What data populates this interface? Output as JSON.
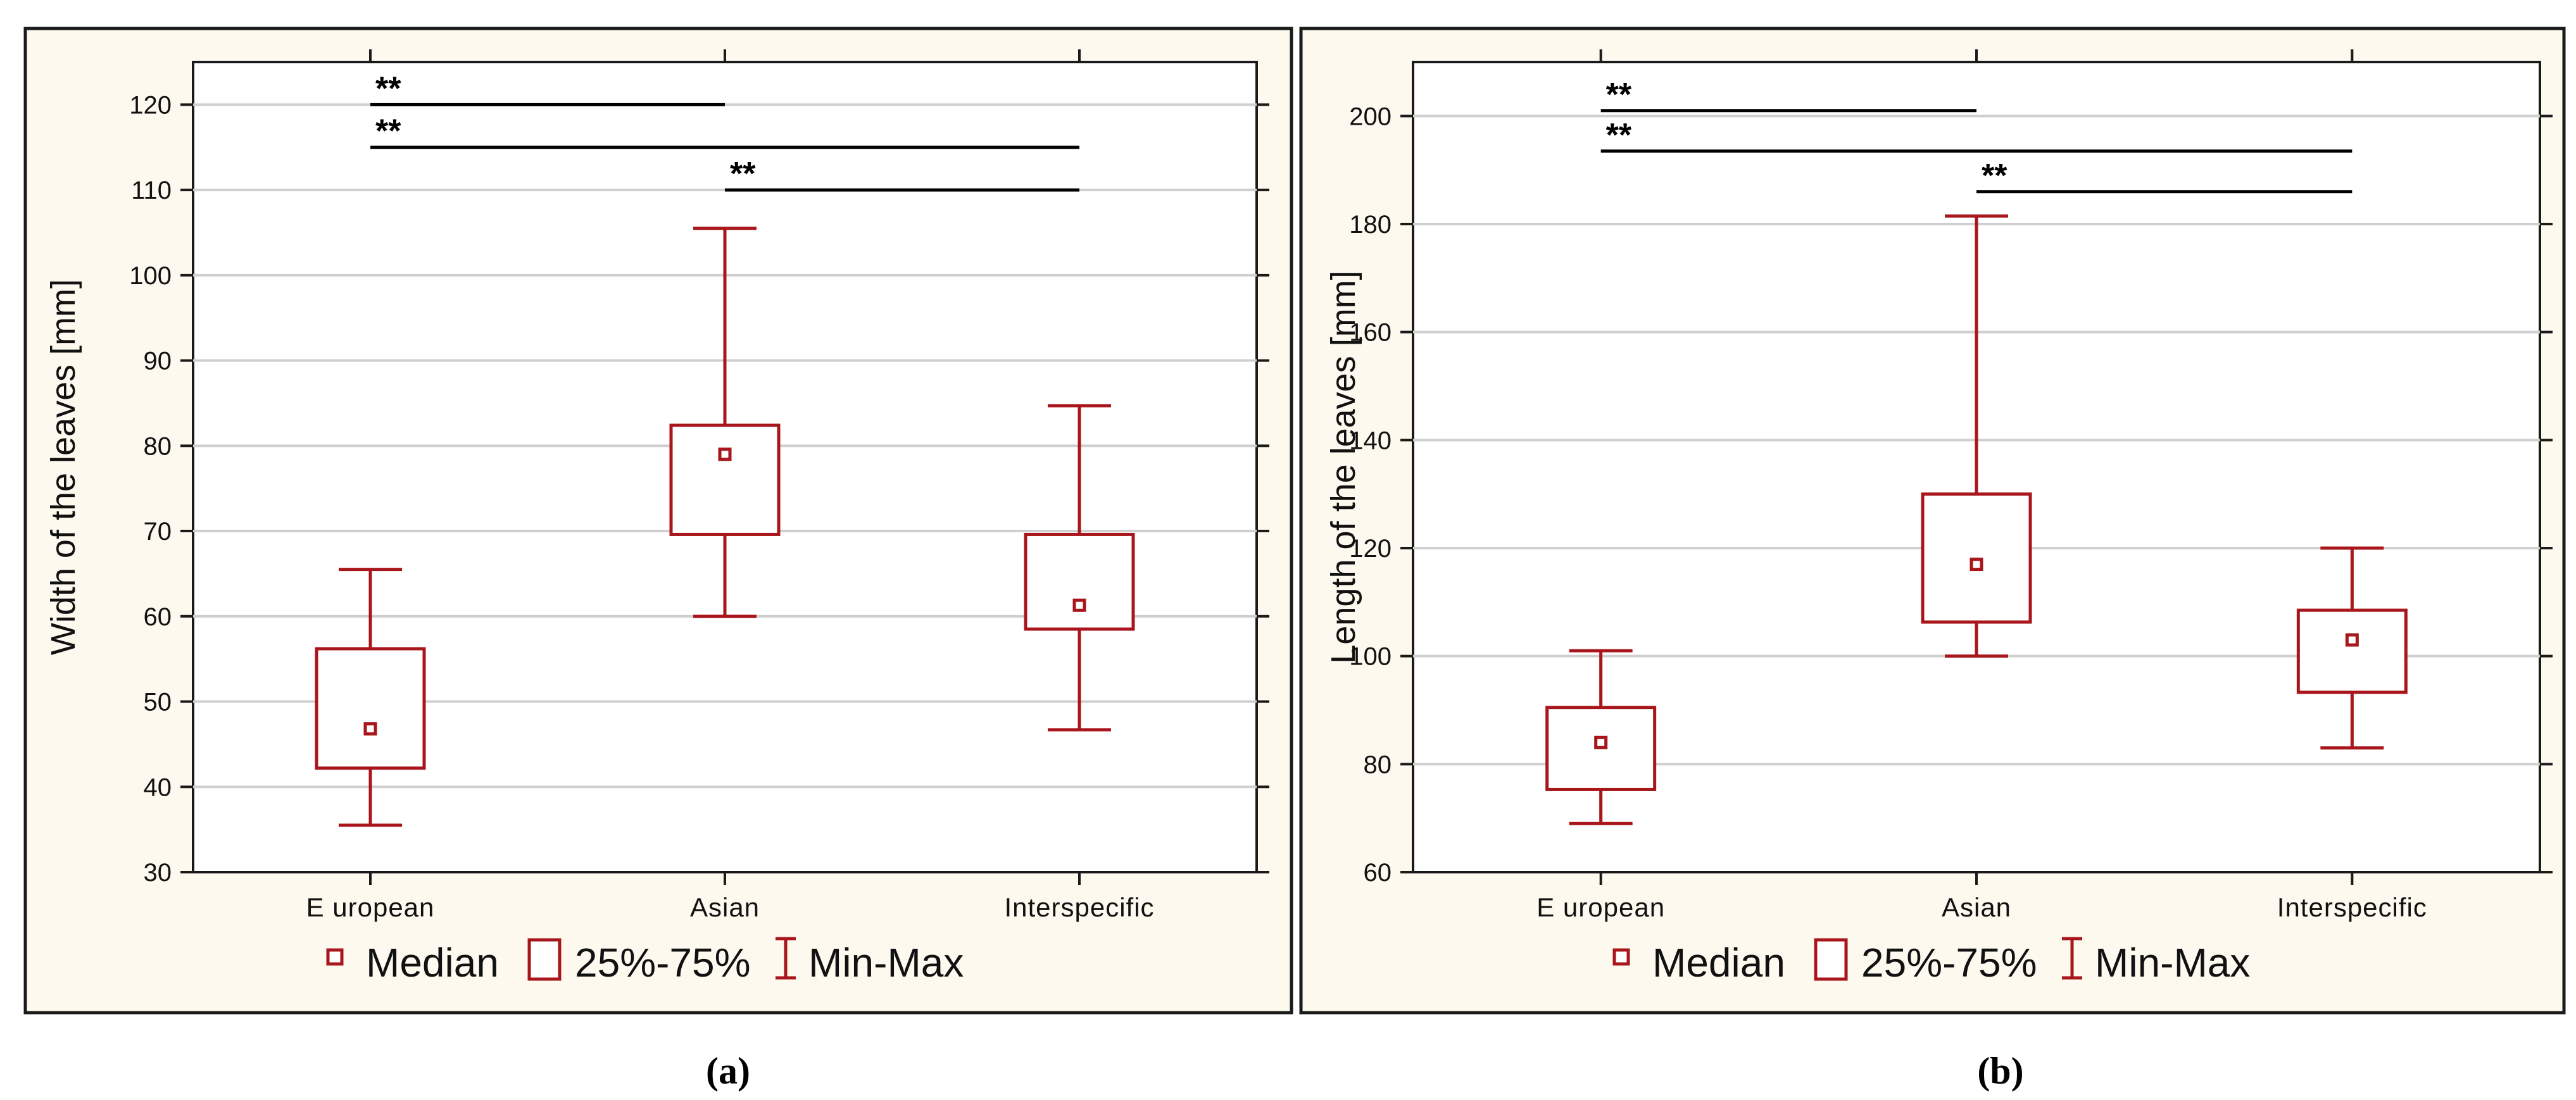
{
  "legend": {
    "median": "Median",
    "box": "25%-75%",
    "whisker": "Min-Max"
  },
  "colors": {
    "series": "#a8161c",
    "panel_background": "#fdf9ef",
    "grid": "#cfcfcf"
  },
  "chart_data": [
    {
      "type": "box",
      "panel_label": "(a)",
      "ylabel": "Width of the leaves [mm]",
      "xlabel": "",
      "ylim": [
        30,
        125
      ],
      "yticks": [
        30,
        40,
        50,
        60,
        70,
        80,
        90,
        100,
        110,
        120
      ],
      "grid": true,
      "categories": [
        "E uropean",
        "Asian",
        "Interspecific"
      ],
      "groups": [
        {
          "name": "E uropean",
          "min": 35.5,
          "q1": 42.2,
          "median": 46.8,
          "q3": 56.2,
          "max": 65.5
        },
        {
          "name": "Asian",
          "min": 60.0,
          "q1": 69.6,
          "median": 79.0,
          "q3": 82.4,
          "max": 105.5
        },
        {
          "name": "Interspecific",
          "min": 46.7,
          "q1": 58.5,
          "median": 61.3,
          "q3": 69.6,
          "max": 84.7
        }
      ],
      "significance": [
        {
          "from": 0,
          "to": 1,
          "y": 120,
          "label": "**"
        },
        {
          "from": 0,
          "to": 2,
          "y": 115,
          "label": "**"
        },
        {
          "from": 1,
          "to": 2,
          "y": 110,
          "label": "**"
        }
      ]
    },
    {
      "type": "box",
      "panel_label": "(b)",
      "ylabel": "Length of the leaves [mm]",
      "xlabel": "",
      "ylim": [
        60,
        210
      ],
      "yticks": [
        60,
        80,
        100,
        120,
        140,
        160,
        180,
        200
      ],
      "grid": true,
      "categories": [
        "E uropean",
        "Asian",
        "Interspecific"
      ],
      "groups": [
        {
          "name": "E uropean",
          "min": 69.0,
          "q1": 75.3,
          "median": 84.0,
          "q3": 90.5,
          "max": 101.0
        },
        {
          "name": "Asian",
          "min": 100.0,
          "q1": 106.3,
          "median": 117.0,
          "q3": 130.0,
          "max": 181.5
        },
        {
          "name": "Interspecific",
          "min": 83.0,
          "q1": 93.3,
          "median": 103.0,
          "q3": 108.5,
          "max": 120.0
        }
      ],
      "significance": [
        {
          "from": 0,
          "to": 1,
          "y": 201,
          "label": "**"
        },
        {
          "from": 0,
          "to": 2,
          "y": 193.5,
          "label": "**"
        },
        {
          "from": 1,
          "to": 2,
          "y": 186,
          "label": "**"
        }
      ]
    }
  ]
}
